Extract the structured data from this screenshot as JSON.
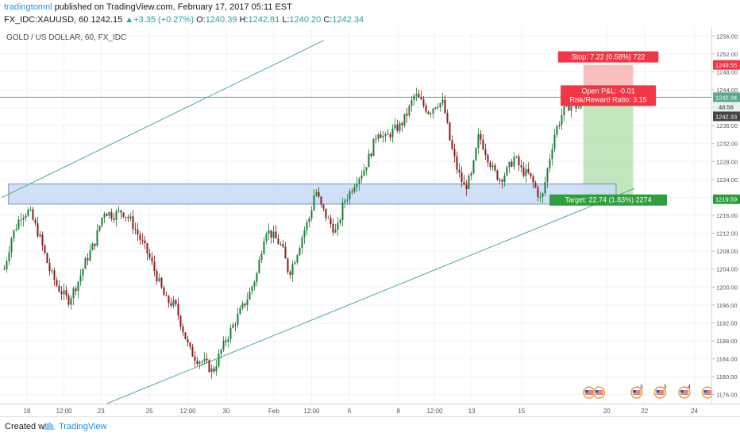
{
  "header": {
    "author": "tradingtomnl",
    "published": "published on TradingView.com, February 17, 2017 05:11 EST",
    "symbol": "FX_IDC:XAUUSD, 60",
    "last": "1242.15",
    "change_arrow": "▲",
    "change": "+3.35 (+0.27%)",
    "open_label": "O:",
    "open": "1240.39",
    "high_label": "H:",
    "high": "1242.81",
    "low_label": "L:",
    "low": "1240.20",
    "close_label": "C:",
    "close": "1242.34"
  },
  "pane_title": "GOLD / US DOLLAR, 60, FX_IDC",
  "footer": {
    "created_with": "Created with",
    "brand": "TradingView",
    "logo_icon": "tradingview-cloud-icon"
  },
  "chart_data": {
    "type": "candlestick",
    "title": "GOLD / US DOLLAR, 60, FX_IDC",
    "ylim": [
      1174,
      1258
    ],
    "y_ticks": [
      "1256.00",
      "1252.00",
      "1248.00",
      "1244.00",
      "1240.00",
      "1236.00",
      "1232.00",
      "1228.00",
      "1224.00",
      "1220.00",
      "1216.00",
      "1212.00",
      "1208.00",
      "1204.00",
      "1200.00",
      "1196.00",
      "1192.00",
      "1188.00",
      "1184.00",
      "1180.00",
      "1176.00"
    ],
    "x_ticks": [
      {
        "label": "18",
        "x": 0.038
      },
      {
        "label": "12:00",
        "x": 0.09
      },
      {
        "label": "23",
        "x": 0.142
      },
      {
        "label": "25",
        "x": 0.21
      },
      {
        "label": "12:00",
        "x": 0.264
      },
      {
        "label": "30",
        "x": 0.318
      },
      {
        "label": "Feb",
        "x": 0.385
      },
      {
        "label": "12:00",
        "x": 0.438
      },
      {
        "label": "6",
        "x": 0.491
      },
      {
        "label": "8",
        "x": 0.56
      },
      {
        "label": "12:00",
        "x": 0.611
      },
      {
        "label": "13",
        "x": 0.663
      },
      {
        "label": "15",
        "x": 0.733
      },
      {
        "label": "20",
        "x": 0.853
      },
      {
        "label": "22",
        "x": 0.906
      },
      {
        "label": "24",
        "x": 0.976
      }
    ],
    "price_path": [
      [
        0.005,
        1204
      ],
      [
        0.015,
        1211
      ],
      [
        0.028,
        1216
      ],
      [
        0.04,
        1217
      ],
      [
        0.055,
        1211
      ],
      [
        0.068,
        1204
      ],
      [
        0.08,
        1200
      ],
      [
        0.095,
        1197
      ],
      [
        0.108,
        1201
      ],
      [
        0.12,
        1206
      ],
      [
        0.132,
        1210
      ],
      [
        0.145,
        1217
      ],
      [
        0.158,
        1216
      ],
      [
        0.17,
        1217
      ],
      [
        0.182,
        1215
      ],
      [
        0.195,
        1211
      ],
      [
        0.208,
        1207
      ],
      [
        0.22,
        1202
      ],
      [
        0.232,
        1197
      ],
      [
        0.245,
        1196
      ],
      [
        0.255,
        1191
      ],
      [
        0.265,
        1186
      ],
      [
        0.275,
        1184
      ],
      [
        0.288,
        1183
      ],
      [
        0.298,
        1181
      ],
      [
        0.31,
        1186
      ],
      [
        0.322,
        1190
      ],
      [
        0.335,
        1194
      ],
      [
        0.348,
        1198
      ],
      [
        0.36,
        1203
      ],
      [
        0.372,
        1213
      ],
      [
        0.385,
        1211
      ],
      [
        0.395,
        1209
      ],
      [
        0.405,
        1203
      ],
      [
        0.415,
        1207
      ],
      [
        0.425,
        1212
      ],
      [
        0.435,
        1216
      ],
      [
        0.442,
        1222
      ],
      [
        0.45,
        1218
      ],
      [
        0.46,
        1215
      ],
      [
        0.472,
        1212
      ],
      [
        0.482,
        1219
      ],
      [
        0.49,
        1221
      ],
      [
        0.5,
        1224
      ],
      [
        0.51,
        1226
      ],
      [
        0.52,
        1230
      ],
      [
        0.53,
        1235
      ],
      [
        0.54,
        1233
      ],
      [
        0.552,
        1235
      ],
      [
        0.562,
        1236
      ],
      [
        0.572,
        1239
      ],
      [
        0.582,
        1243
      ],
      [
        0.592,
        1241
      ],
      [
        0.602,
        1239
      ],
      [
        0.612,
        1241
      ],
      [
        0.622,
        1241
      ],
      [
        0.632,
        1232
      ],
      [
        0.642,
        1226
      ],
      [
        0.652,
        1222
      ],
      [
        0.662,
        1225
      ],
      [
        0.672,
        1234
      ],
      [
        0.682,
        1230
      ],
      [
        0.692,
        1226
      ],
      [
        0.702,
        1224
      ],
      [
        0.712,
        1226
      ],
      [
        0.722,
        1229
      ],
      [
        0.732,
        1226
      ],
      [
        0.742,
        1225
      ],
      [
        0.752,
        1222
      ],
      [
        0.76,
        1219
      ],
      [
        0.768,
        1226
      ],
      [
        0.778,
        1234
      ],
      [
        0.79,
        1239
      ],
      [
        0.802,
        1241
      ],
      [
        0.812,
        1240
      ],
      [
        0.821,
        1242
      ]
    ],
    "resistance_line": 1242.34,
    "demand_zone": {
      "x_start": 0.012,
      "x_end": 0.866,
      "y_high": 1223,
      "y_low": 1218.5
    },
    "channel_upper": [
      [
        0.003,
        1220
      ],
      [
        0.455,
        1255
      ]
    ],
    "channel_lower": [
      [
        0.15,
        1174
      ],
      [
        0.892,
        1222
      ]
    ],
    "position": {
      "x_start": 0.82,
      "x_end": 0.89,
      "entry": 1242.33,
      "stop": 1249.55,
      "target": 1219.59,
      "stop_label": "Stop: 7.22 (0.58%) 722",
      "pnl_label": "Open P&L: -0.01",
      "rr_label": "Risk/Reward Ratio: 3.15",
      "target_label": "Target: 22.74 (1.83%) 2274"
    },
    "price_tags": [
      {
        "value": 1249.55,
        "label": "1249.55",
        "color": "#f23645"
      },
      {
        "value": 1242.34,
        "label": "1242.34",
        "color": "#5ba88a"
      },
      {
        "value": 1242.33,
        "label": "1242.33",
        "color": "#4ec5d4"
      },
      {
        "value": 1242.33,
        "label": "1242.33",
        "color": "#444444"
      },
      {
        "value": 1219.59,
        "label": "1219.59",
        "color": "#2e9e3e"
      }
    ],
    "time_tag": "48:58",
    "colors": {
      "up": "#1b7f3a",
      "down": "#8b1a1a",
      "stop_fill": "#f8b4b4",
      "target_fill": "#b9e2b4",
      "zone_fill": "#c8dcf6",
      "zone_border": "#5b7fbf",
      "trend": "#4caf7d"
    },
    "events": [
      {
        "x": 0.828,
        "icon": "us-flag-event-icon"
      },
      {
        "x": 0.842,
        "icon": "us-flag-event-icon"
      },
      {
        "x": 0.895,
        "icon": "us-flag-event-icon",
        "label": "3"
      },
      {
        "x": 0.928,
        "icon": "us-flag-event-icon",
        "label": "3"
      },
      {
        "x": 0.962,
        "icon": "us-flag-event-icon",
        "label": "4"
      },
      {
        "x": 0.995,
        "icon": "us-flag-event-icon"
      }
    ]
  }
}
